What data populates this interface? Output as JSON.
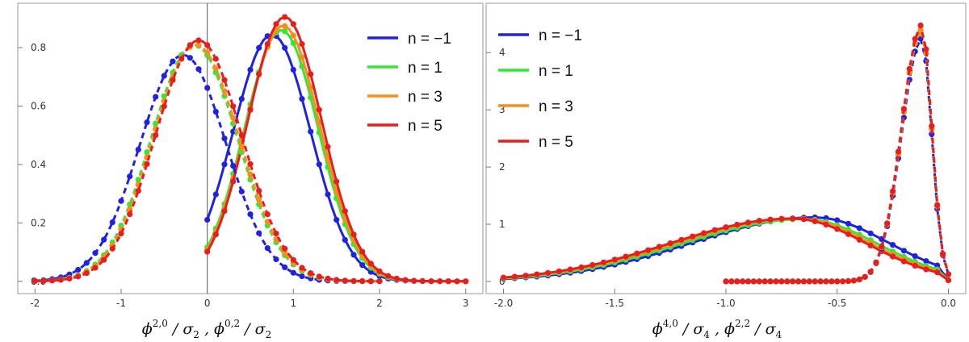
{
  "chart_data": [
    {
      "type": "line",
      "xlabel": "ϕ^{2,0} / σ₂ ,  ϕ^{0,2} / σ₂",
      "xlim": [
        -2.05,
        3.05
      ],
      "ylim": [
        -0.02,
        0.93
      ],
      "xticks": [
        "-2",
        "-1",
        "0",
        "1",
        "2",
        "3"
      ],
      "yticks": [
        "0.0",
        "0.2",
        "0.4",
        "0.6",
        "0.8"
      ],
      "grid": false,
      "vertical_line_at": 0,
      "legend_position": "top-right",
      "series": [
        {
          "name": "n = −1",
          "color": "#1f22e6",
          "style": "solid",
          "mean": 0.75,
          "sd": 0.45,
          "peak": 0.845,
          "xmin": 0,
          "xmax": 3
        },
        {
          "name": "n = 1",
          "color": "#33e833",
          "style": "solid",
          "mean": 0.86,
          "sd": 0.43,
          "peak": 0.86,
          "xmin": 0,
          "xmax": 3
        },
        {
          "name": "n = 3",
          "color": "#ff8c1a",
          "style": "solid",
          "mean": 0.88,
          "sd": 0.43,
          "peak": 0.875,
          "xmin": 0,
          "xmax": 3
        },
        {
          "name": "n = 5",
          "color": "#e81e1e",
          "style": "solid",
          "mean": 0.9,
          "sd": 0.43,
          "peak": 0.905,
          "xmin": 0,
          "xmax": 3
        },
        {
          "name": "n = −1",
          "color": "#1f22e6",
          "style": "dashed",
          "mean": -0.28,
          "sd": 0.5,
          "peak": 0.775,
          "xmin": -2,
          "xmax": 2
        },
        {
          "name": "n = 1",
          "color": "#33e833",
          "style": "dashed",
          "mean": -0.15,
          "sd": 0.5,
          "peak": 0.81,
          "xmin": -2,
          "xmax": 2
        },
        {
          "name": "n = 3",
          "color": "#ff8c1a",
          "style": "dashed",
          "mean": -0.13,
          "sd": 0.5,
          "peak": 0.81,
          "xmin": -2,
          "xmax": 2
        },
        {
          "name": "n = 5",
          "color": "#e81e1e",
          "style": "dashed",
          "mean": -0.1,
          "sd": 0.5,
          "peak": 0.825,
          "xmin": -2,
          "xmax": 2
        }
      ]
    },
    {
      "type": "line",
      "xlabel": "ϕ^{4,0} / σ₄ ,  ϕ^{2,2} / σ₄",
      "xlim": [
        -2.02,
        0.02
      ],
      "ylim": [
        -0.1,
        4.75
      ],
      "xticks": [
        "-2.0",
        "-1.5",
        "-1.0",
        "-0.5",
        "0.0"
      ],
      "yticks": [
        "0",
        "1",
        "2",
        "3",
        "4"
      ],
      "grid": false,
      "legend_position": "top-left",
      "series": [
        {
          "name": "n = −1",
          "color": "#1f22e6",
          "style": "solid",
          "mode": "-0.6",
          "peak": 1.12,
          "xmin": -2,
          "xmax": 0
        },
        {
          "name": "n = 1",
          "color": "#33e833",
          "style": "solid",
          "mode": "-0.65",
          "peak": 1.09,
          "xmin": -2,
          "xmax": 0
        },
        {
          "name": "n = 3",
          "color": "#ff8c1a",
          "style": "solid",
          "mode": "-0.68",
          "peak": 1.1,
          "xmin": -2,
          "xmax": 0
        },
        {
          "name": "n = 5",
          "color": "#e81e1e",
          "style": "solid",
          "mode": "-0.7",
          "peak": 1.1,
          "xmin": -2,
          "xmax": 0
        },
        {
          "name": "n = −1",
          "color": "#1f22e6",
          "style": "dashed",
          "peak_x": -0.12,
          "peak": 4.25,
          "xmin": -1,
          "xmax": 0
        },
        {
          "name": "n = 1",
          "color": "#33e833",
          "style": "dashed",
          "peak_x": -0.12,
          "peak": 4.4,
          "xmin": -1,
          "xmax": 0
        },
        {
          "name": "n = 3",
          "color": "#ff8c1a",
          "style": "dashed",
          "peak_x": -0.12,
          "peak": 4.4,
          "xmin": -1,
          "xmax": 0
        },
        {
          "name": "n = 5",
          "color": "#e81e1e",
          "style": "dashed",
          "peak_x": -0.12,
          "peak": 4.48,
          "xmin": -1,
          "xmax": 0
        }
      ]
    }
  ]
}
